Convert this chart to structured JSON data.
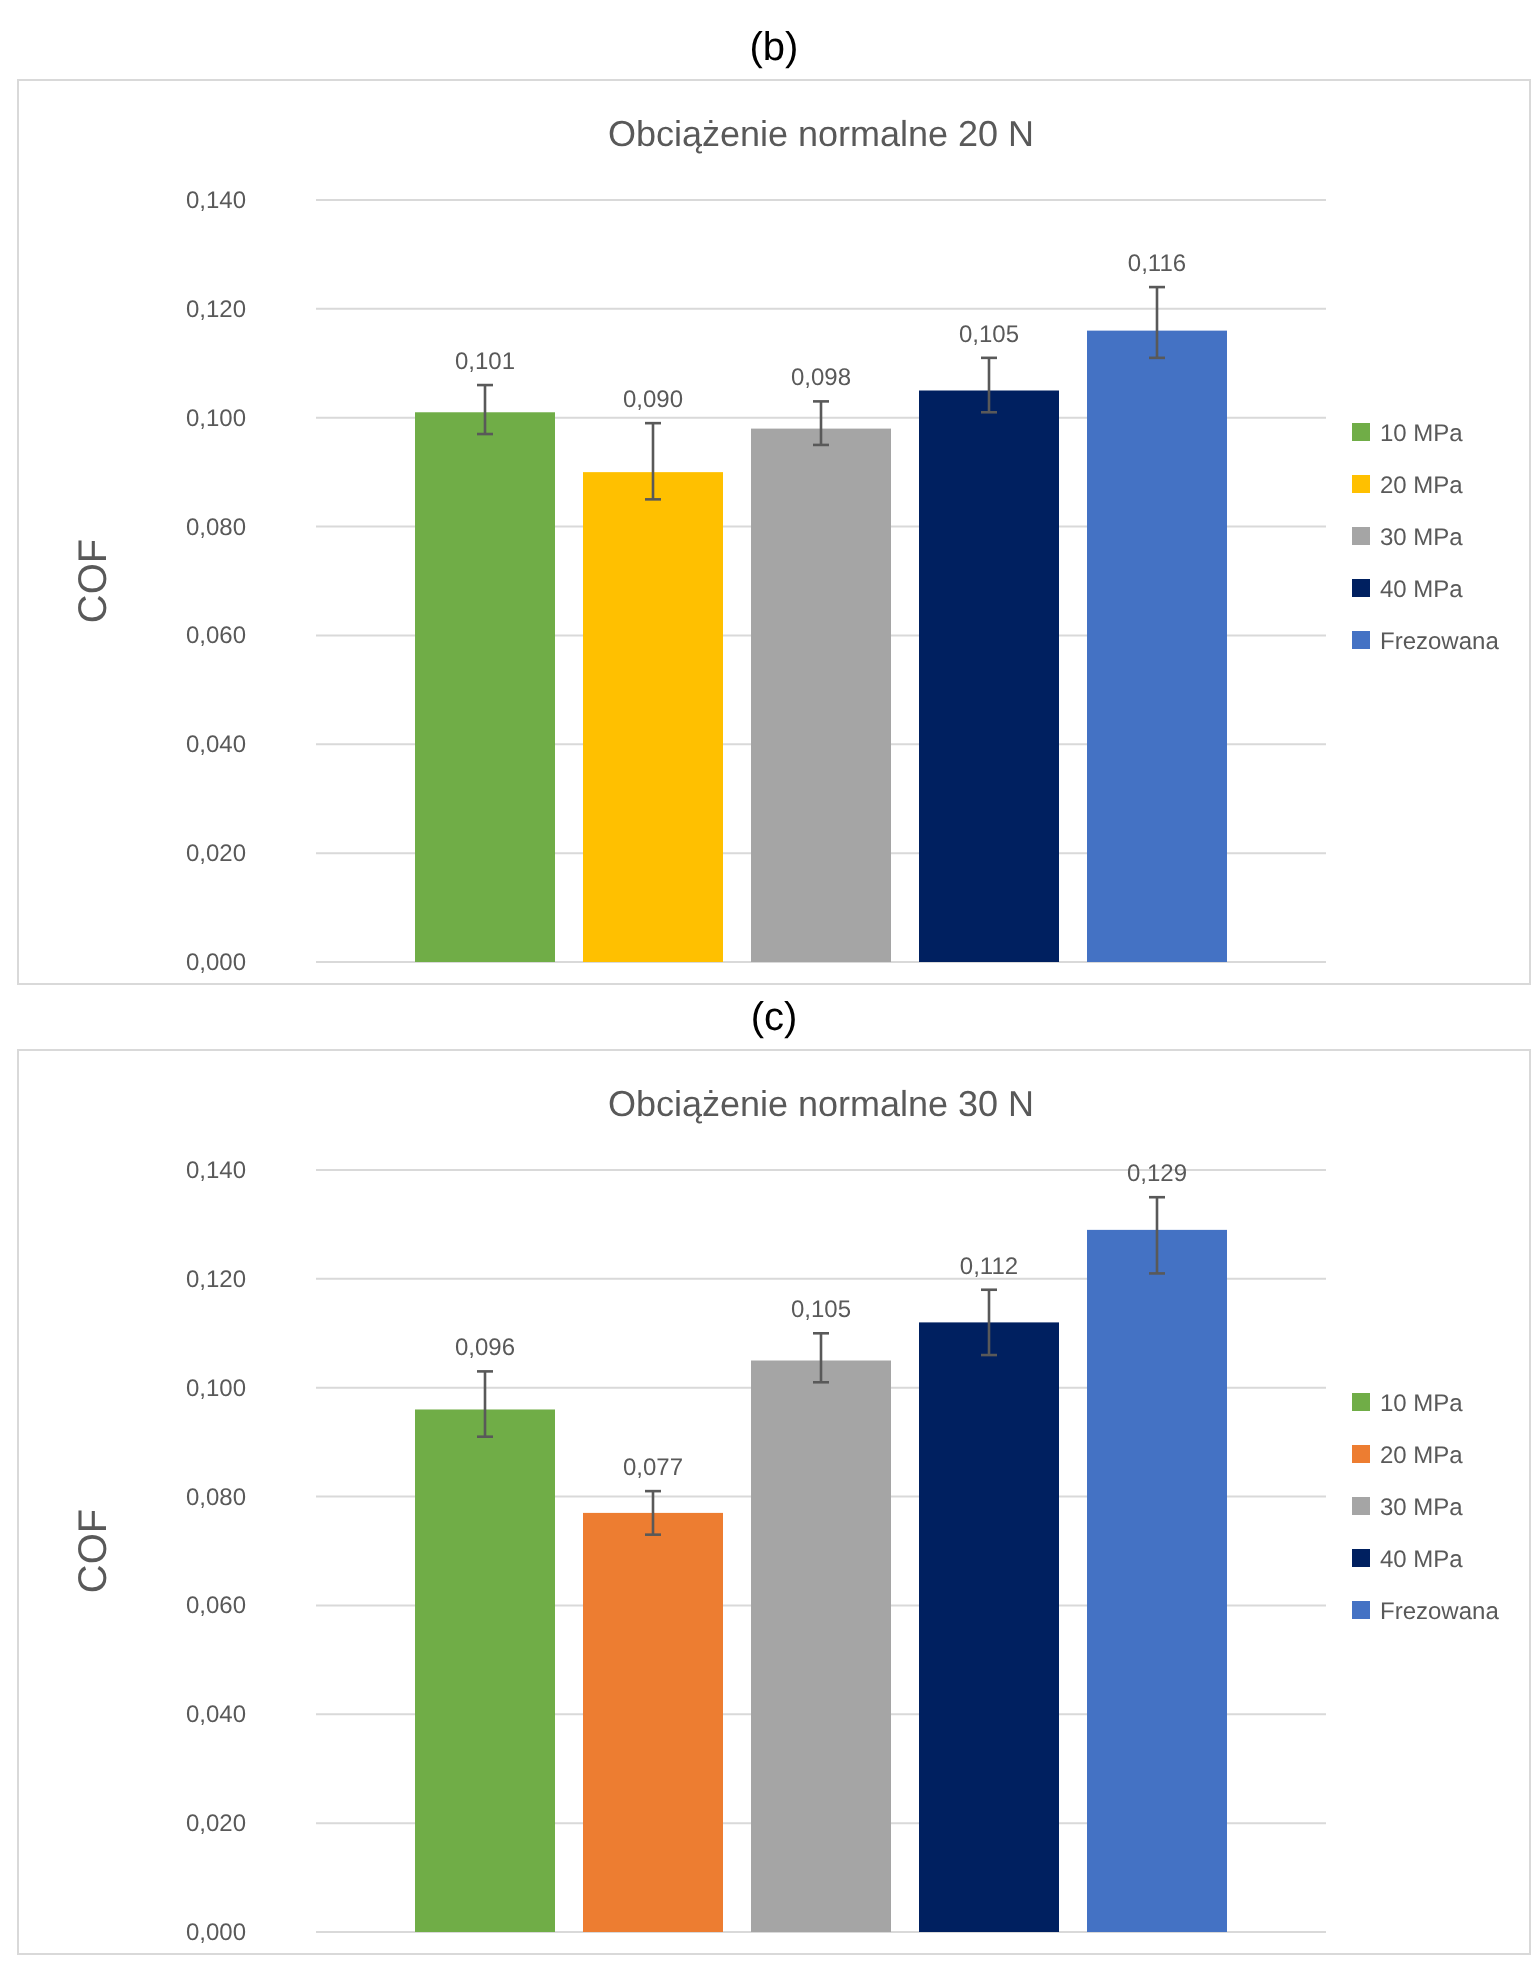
{
  "chart_data": [
    {
      "type": "bar",
      "title": "Obciążenie normalne 20 N",
      "annotations": [
        "(b)"
      ],
      "ylabel": "COF",
      "categories": [
        null
      ],
      "series": [
        {
          "name": "10 MPa",
          "color": "#70ad47",
          "values": [
            0.101
          ],
          "errors": [
            [
              0.097,
              0.106
            ]
          ],
          "value_labels": [
            "0,101"
          ]
        },
        {
          "name": "20 MPa",
          "color": "#ffc000",
          "values": [
            0.09
          ],
          "errors": [
            [
              0.085,
              0.099
            ]
          ],
          "value_labels": [
            "0,090"
          ]
        },
        {
          "name": "30 MPa",
          "color": "#a5a5a5",
          "values": [
            0.098
          ],
          "errors": [
            [
              0.095,
              0.103
            ]
          ],
          "value_labels": [
            "0,098"
          ]
        },
        {
          "name": "40 MPa",
          "color": "#002060",
          "values": [
            0.105
          ],
          "errors": [
            [
              0.101,
              0.111
            ]
          ],
          "value_labels": [
            "0,105"
          ]
        },
        {
          "name": "Frezowana",
          "color": "#4472c4",
          "values": [
            0.116
          ],
          "errors": [
            [
              0.111,
              0.124
            ]
          ],
          "value_labels": [
            "0,116"
          ]
        }
      ],
      "ylim": [
        0,
        0.14
      ],
      "yticks": [
        {
          "value": 0,
          "label": "0,000"
        },
        {
          "value": 0.02,
          "label": "0,020"
        },
        {
          "value": 0.04,
          "label": "0,040"
        },
        {
          "value": 0.06,
          "label": "0,060"
        },
        {
          "value": 0.08,
          "label": "0,080"
        },
        {
          "value": 0.1,
          "label": "0,100"
        },
        {
          "value": 0.12,
          "label": "0,120"
        },
        {
          "value": 0.14,
          "label": "0,140"
        }
      ],
      "grid": "y",
      "legend": "right"
    },
    {
      "type": "bar",
      "title": "Obciążenie normalne 30 N",
      "annotations": [
        "(c)"
      ],
      "ylabel": "COF",
      "categories": [
        null
      ],
      "series": [
        {
          "name": "10 MPa",
          "color": "#70ad47",
          "values": [
            0.096
          ],
          "errors": [
            [
              0.091,
              0.103
            ]
          ],
          "value_labels": [
            "0,096"
          ]
        },
        {
          "name": "20 MPa",
          "color": "#ed7d31",
          "values": [
            0.077
          ],
          "errors": [
            [
              0.073,
              0.081
            ]
          ],
          "value_labels": [
            "0,077"
          ]
        },
        {
          "name": "30 MPa",
          "color": "#a5a5a5",
          "values": [
            0.105
          ],
          "errors": [
            [
              0.101,
              0.11
            ]
          ],
          "value_labels": [
            "0,105"
          ]
        },
        {
          "name": "40 MPa",
          "color": "#002060",
          "values": [
            0.112
          ],
          "errors": [
            [
              0.106,
              0.118
            ]
          ],
          "value_labels": [
            "0,112"
          ]
        },
        {
          "name": "Frezowana",
          "color": "#4472c4",
          "values": [
            0.129
          ],
          "errors": [
            [
              0.121,
              0.135
            ]
          ],
          "value_labels": [
            "0,129"
          ]
        }
      ],
      "ylim": [
        0,
        0.14
      ],
      "yticks": [
        {
          "value": 0,
          "label": "0,000"
        },
        {
          "value": 0.02,
          "label": "0,020"
        },
        {
          "value": 0.04,
          "label": "0,040"
        },
        {
          "value": 0.06,
          "label": "0,060"
        },
        {
          "value": 0.08,
          "label": "0,080"
        },
        {
          "value": 0.1,
          "label": "0,100"
        },
        {
          "value": 0.12,
          "label": "0,120"
        },
        {
          "value": 0.14,
          "label": "0,140"
        }
      ],
      "grid": "y",
      "legend": "right"
    }
  ]
}
